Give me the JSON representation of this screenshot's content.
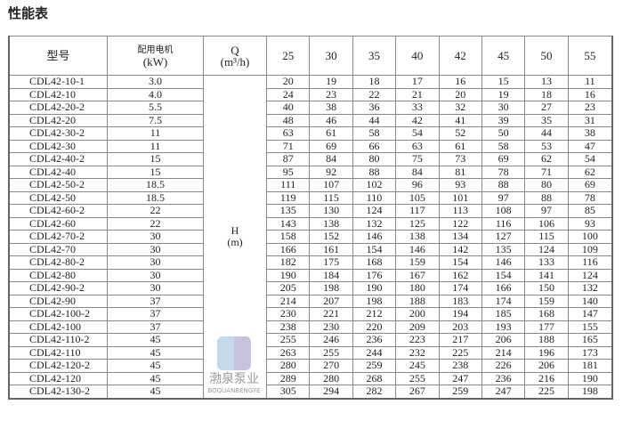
{
  "title": "性能表",
  "headers": {
    "model": "型号",
    "motor": "配用电机",
    "motor_unit": "(kW)",
    "q": "Q",
    "q_unit": "(m³/h)",
    "h": "H",
    "h_unit": "(m)"
  },
  "flows": [
    "25",
    "30",
    "35",
    "40",
    "42",
    "45",
    "50",
    "55"
  ],
  "rows": [
    {
      "model": "CDL42-10-1",
      "kw": "3.0",
      "h": [
        "20",
        "19",
        "18",
        "17",
        "16",
        "15",
        "13",
        "11"
      ]
    },
    {
      "model": "CDL42-10",
      "kw": "4.0",
      "h": [
        "24",
        "23",
        "22",
        "21",
        "20",
        "19",
        "18",
        "16"
      ]
    },
    {
      "model": "CDL42-20-2",
      "kw": "5.5",
      "h": [
        "40",
        "38",
        "36",
        "33",
        "32",
        "30",
        "27",
        "23"
      ]
    },
    {
      "model": "CDL42-20",
      "kw": "7.5",
      "h": [
        "48",
        "46",
        "44",
        "42",
        "41",
        "39",
        "35",
        "31"
      ]
    },
    {
      "model": "CDL42-30-2",
      "kw": "11",
      "h": [
        "63",
        "61",
        "58",
        "54",
        "52",
        "50",
        "44",
        "38"
      ]
    },
    {
      "model": "CDL42-30",
      "kw": "11",
      "h": [
        "71",
        "69",
        "66",
        "63",
        "61",
        "58",
        "53",
        "47"
      ]
    },
    {
      "model": "CDL42-40-2",
      "kw": "15",
      "h": [
        "87",
        "84",
        "80",
        "75",
        "73",
        "69",
        "62",
        "54"
      ]
    },
    {
      "model": "CDL42-40",
      "kw": "15",
      "h": [
        "95",
        "92",
        "88",
        "84",
        "81",
        "78",
        "71",
        "62"
      ]
    },
    {
      "model": "CDL42-50-2",
      "kw": "18.5",
      "h": [
        "111",
        "107",
        "102",
        "96",
        "93",
        "88",
        "80",
        "69"
      ]
    },
    {
      "model": "CDL42-50",
      "kw": "18.5",
      "h": [
        "119",
        "115",
        "110",
        "105",
        "101",
        "97",
        "88",
        "78"
      ]
    },
    {
      "model": "CDL42-60-2",
      "kw": "22",
      "h": [
        "135",
        "130",
        "124",
        "117",
        "113",
        "108",
        "97",
        "85"
      ]
    },
    {
      "model": "CDL42-60",
      "kw": "22",
      "h": [
        "143",
        "138",
        "132",
        "125",
        "122",
        "116",
        "106",
        "93"
      ]
    },
    {
      "model": "CDL42-70-2",
      "kw": "30",
      "h": [
        "158",
        "152",
        "146",
        "138",
        "134",
        "127",
        "115",
        "100"
      ]
    },
    {
      "model": "CDL42-70",
      "kw": "30",
      "h": [
        "166",
        "161",
        "154",
        "146",
        "142",
        "135",
        "124",
        "109"
      ]
    },
    {
      "model": "CDL42-80-2",
      "kw": "30",
      "h": [
        "182",
        "175",
        "168",
        "159",
        "154",
        "146",
        "133",
        "116"
      ]
    },
    {
      "model": "CDL42-80",
      "kw": "30",
      "h": [
        "190",
        "184",
        "176",
        "167",
        "162",
        "154",
        "141",
        "124"
      ]
    },
    {
      "model": "CDL42-90-2",
      "kw": "30",
      "h": [
        "205",
        "198",
        "190",
        "180",
        "174",
        "166",
        "150",
        "132"
      ]
    },
    {
      "model": "CDL42-90",
      "kw": "37",
      "h": [
        "214",
        "207",
        "198",
        "188",
        "183",
        "174",
        "159",
        "140"
      ]
    },
    {
      "model": "CDL42-100-2",
      "kw": "37",
      "h": [
        "230",
        "221",
        "212",
        "200",
        "194",
        "185",
        "168",
        "147"
      ]
    },
    {
      "model": "CDL42-100",
      "kw": "37",
      "h": [
        "238",
        "230",
        "220",
        "209",
        "203",
        "193",
        "177",
        "155"
      ]
    },
    {
      "model": "CDL42-110-2",
      "kw": "45",
      "h": [
        "255",
        "246",
        "236",
        "223",
        "217",
        "206",
        "188",
        "165"
      ]
    },
    {
      "model": "CDL42-110",
      "kw": "45",
      "h": [
        "263",
        "255",
        "244",
        "232",
        "225",
        "214",
        "196",
        "173"
      ]
    },
    {
      "model": "CDL42-120-2",
      "kw": "45",
      "h": [
        "280",
        "270",
        "259",
        "245",
        "238",
        "226",
        "206",
        "181"
      ]
    },
    {
      "model": "CDL42-120",
      "kw": "45",
      "h": [
        "289",
        "280",
        "268",
        "255",
        "247",
        "236",
        "216",
        "190"
      ]
    },
    {
      "model": "CDL42-130-2",
      "kw": "45",
      "h": [
        "305",
        "294",
        "282",
        "267",
        "259",
        "247",
        "225",
        "198"
      ]
    }
  ],
  "watermark": {
    "cn": "渤泉泵业",
    "en": "BOQUANBENGYE"
  }
}
